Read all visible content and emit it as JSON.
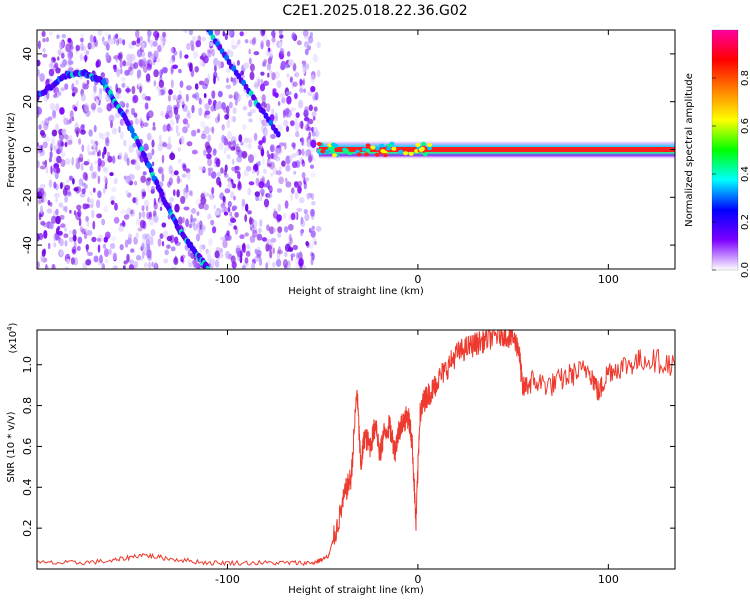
{
  "chart_data": [
    {
      "type": "heatmap",
      "title": "C2E1.2025.018.22.36.G02",
      "xlabel": "Height of straight line (km)",
      "ylabel": "Frequency (Hz)",
      "xlim": [
        -200,
        135
      ],
      "ylim": [
        -50,
        50
      ],
      "x_ticks": [
        -100,
        0,
        100
      ],
      "y_ticks": [
        -40,
        -20,
        0,
        20,
        40
      ],
      "grid": false,
      "features": [
        {
          "name": "noise-region",
          "x_range": [
            -200,
            -52
          ],
          "note": "scattered low-amplitude speckle"
        },
        {
          "name": "descending-tone",
          "points": [
            [
              -200,
              22
            ],
            [
              -185,
              31
            ],
            [
              -175,
              32
            ],
            [
              -165,
              28
            ],
            [
              -155,
              15
            ],
            [
              -145,
              0
            ],
            [
              -135,
              -18
            ],
            [
              -125,
              -34
            ],
            [
              -115,
              -45
            ],
            [
              -110,
              -50
            ]
          ]
        },
        {
          "name": "upper-tone",
          "points": [
            [
              -110,
              50
            ],
            [
              -98,
              35
            ],
            [
              -85,
              20
            ],
            [
              -72,
              5
            ]
          ]
        },
        {
          "name": "carrier-line",
          "x_range": [
            -52,
            135
          ],
          "freq_hz": 0,
          "note": "high-amplitude near-zero Doppler carrier"
        }
      ],
      "colorbar": {
        "label": "Normalized spectral amplitude",
        "range": [
          0,
          1
        ],
        "ticks": [
          "0.0",
          "0.2",
          "0.4",
          "0.6",
          "0.8"
        ],
        "colors": [
          "#ffffff",
          "#7b00ff",
          "#0000ff",
          "#00ffff",
          "#00ff00",
          "#ffff00",
          "#ff8000",
          "#ff0000",
          "#ff00a0"
        ]
      }
    },
    {
      "type": "line",
      "xlabel": "Height of straight line (km)",
      "ylabel": "SNR (10 * v/v)",
      "y_multiplier": "(x10",
      "y_multiplier_exp": "4",
      "y_multiplier_close": ")",
      "xlim": [
        -200,
        135
      ],
      "ylim": [
        0,
        1.17
      ],
      "x_ticks": [
        -100,
        0,
        100
      ],
      "y_ticks": [
        0.2,
        0.4,
        0.6,
        0.8,
        1.0
      ],
      "series": [
        {
          "color": "#ee3a2e",
          "x": [
            -200,
            -180,
            -160,
            -145,
            -130,
            -110,
            -90,
            -70,
            -55,
            -47,
            -42,
            -38,
            -35,
            -32,
            -30,
            -28,
            -25,
            -22,
            -20,
            -18,
            -15,
            -12,
            -10,
            -8,
            -5,
            -3,
            -1,
            1,
            3,
            5,
            8,
            10,
            15,
            20,
            25,
            30,
            35,
            40,
            45,
            50,
            53,
            55,
            60,
            70,
            80,
            90,
            95,
            100,
            110,
            120,
            135
          ],
          "y": [
            0.03,
            0.03,
            0.04,
            0.07,
            0.05,
            0.03,
            0.03,
            0.03,
            0.03,
            0.06,
            0.22,
            0.38,
            0.45,
            0.88,
            0.5,
            0.65,
            0.6,
            0.72,
            0.55,
            0.66,
            0.7,
            0.58,
            0.68,
            0.72,
            0.75,
            0.62,
            0.22,
            0.75,
            0.82,
            0.85,
            0.88,
            0.92,
            0.98,
            1.05,
            1.08,
            1.1,
            1.12,
            1.14,
            1.15,
            1.13,
            1.08,
            0.88,
            0.92,
            0.9,
            0.95,
            0.98,
            0.86,
            0.97,
            1.0,
            1.03,
            1.0
          ]
        }
      ]
    }
  ]
}
